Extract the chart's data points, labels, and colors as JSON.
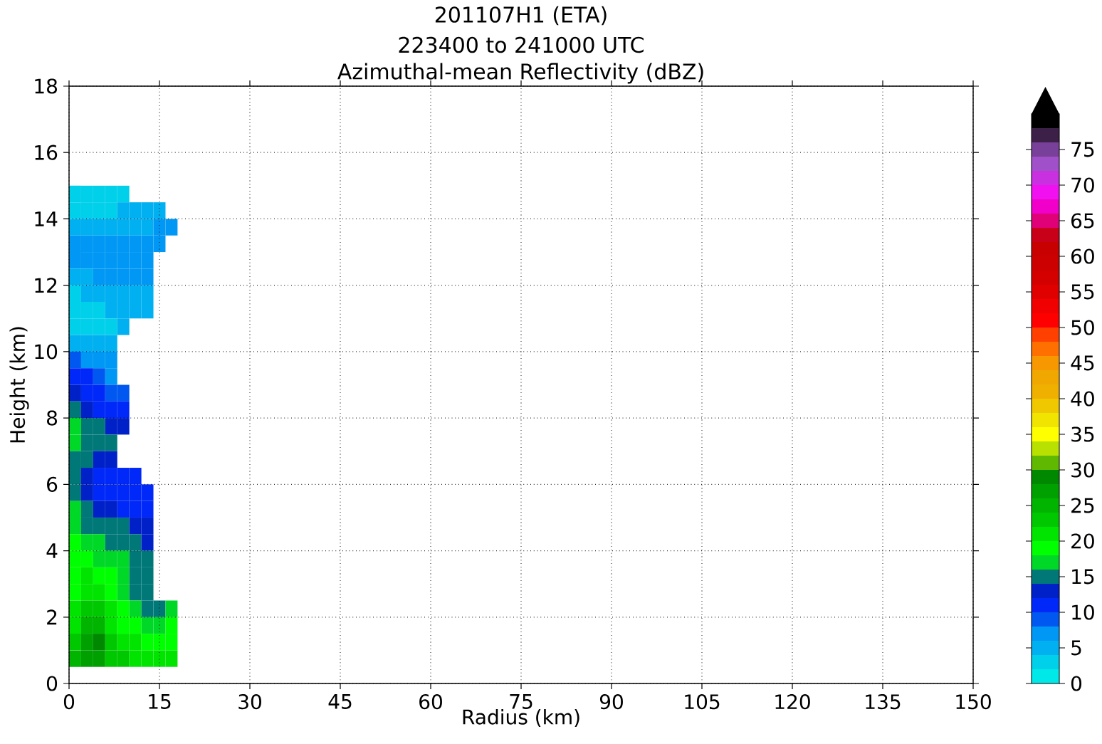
{
  "chart_data": {
    "type": "heatmap",
    "title": "201107H1 (ETA)",
    "subtitle": "223400 to 241000 UTC",
    "annotations": [
      "Azimuthal-mean Reflectivity (dBZ)"
    ],
    "xlabel": "Radius (km)",
    "ylabel": "Height (km)",
    "x": [
      1,
      3,
      5,
      7,
      9,
      11,
      13,
      15,
      17
    ],
    "y": [
      14.75,
      14.25,
      13.75,
      13.25,
      12.75,
      12.25,
      11.75,
      11.25,
      10.75,
      10.25,
      9.75,
      9.25,
      8.75,
      8.25,
      7.75,
      7.25,
      6.75,
      6.25,
      5.75,
      5.25,
      4.75,
      4.25,
      3.75,
      3.25,
      2.75,
      2.25,
      1.75,
      1.25,
      0.75
    ],
    "cells": [
      [
        3,
        3,
        3,
        3,
        3,
        null,
        null,
        null,
        null
      ],
      [
        3,
        3,
        3,
        3,
        5,
        5,
        5,
        5,
        null
      ],
      [
        5,
        5,
        5,
        5,
        5,
        5,
        5,
        7,
        7
      ],
      [
        7,
        7,
        7,
        7,
        7,
        7,
        7,
        7,
        null
      ],
      [
        7,
        7,
        7,
        7,
        7,
        7,
        7,
        null,
        null
      ],
      [
        5,
        5,
        7,
        7,
        7,
        7,
        7,
        null,
        null
      ],
      [
        3,
        5,
        5,
        5,
        5,
        5,
        5,
        null,
        null
      ],
      [
        3,
        3,
        3,
        5,
        5,
        5,
        5,
        null,
        null
      ],
      [
        3,
        3,
        3,
        3,
        5,
        null,
        null,
        null,
        null
      ],
      [
        5,
        5,
        5,
        5,
        null,
        null,
        null,
        null,
        null
      ],
      [
        9,
        7,
        7,
        7,
        null,
        null,
        null,
        null,
        null
      ],
      [
        11,
        11,
        9,
        7,
        null,
        null,
        null,
        null,
        null
      ],
      [
        13,
        11,
        11,
        9,
        9,
        null,
        null,
        null,
        null
      ],
      [
        15,
        13,
        11,
        11,
        11,
        null,
        null,
        null,
        null
      ],
      [
        17,
        15,
        15,
        13,
        13,
        null,
        null,
        null,
        null
      ],
      [
        17,
        15,
        15,
        15,
        null,
        null,
        null,
        null,
        null
      ],
      [
        15,
        15,
        13,
        13,
        null,
        null,
        null,
        null,
        null
      ],
      [
        15,
        13,
        11,
        11,
        11,
        11,
        null,
        null,
        null
      ],
      [
        15,
        13,
        11,
        11,
        11,
        11,
        11,
        null,
        null
      ],
      [
        17,
        15,
        13,
        13,
        11,
        11,
        11,
        null,
        null
      ],
      [
        17,
        15,
        15,
        15,
        15,
        13,
        13,
        null,
        null
      ],
      [
        19,
        17,
        17,
        15,
        15,
        15,
        13,
        null,
        null
      ],
      [
        19,
        19,
        17,
        17,
        17,
        15,
        15,
        null,
        null
      ],
      [
        19,
        21,
        19,
        19,
        17,
        15,
        15,
        null,
        null
      ],
      [
        19,
        21,
        21,
        19,
        17,
        15,
        15,
        null,
        null
      ],
      [
        21,
        23,
        23,
        21,
        19,
        17,
        15,
        15,
        17
      ],
      [
        21,
        25,
        25,
        21,
        19,
        19,
        17,
        17,
        19
      ],
      [
        23,
        27,
        29,
        23,
        21,
        21,
        19,
        19,
        19
      ],
      [
        25,
        27,
        27,
        23,
        23,
        21,
        21,
        21,
        21
      ]
    ],
    "colors": [
      "#00e8e8",
      "#00d0ea",
      "#00b0f0",
      "#0098f4",
      "#0058f0",
      "#0028f8",
      "#0020c8",
      "#007878",
      "#00d828",
      "#00ff00",
      "#00e400",
      "#00c800",
      "#00b400",
      "#00a000",
      "#008800",
      "#60b800",
      "#b8e000",
      "#ffff00",
      "#f0e400",
      "#f0c800",
      "#f0b000",
      "#f0a800",
      "#f89800",
      "#ff7000",
      "#ff4000",
      "#ff0000",
      "#f00000",
      "#e00000",
      "#d40000",
      "#cc0000",
      "#c80000",
      "#c80018",
      "#e00078",
      "#f000c8",
      "#f010f0",
      "#c830e0",
      "#a050c8",
      "#784098",
      "#3c2048",
      "#000000"
    ],
    "clim": [
      0,
      80
    ],
    "cticks": [
      0,
      5,
      10,
      15,
      20,
      25,
      30,
      35,
      40,
      45,
      50,
      55,
      60,
      65,
      70,
      75
    ],
    "xlim": [
      0,
      150
    ],
    "xticks": [
      0,
      15,
      30,
      45,
      60,
      75,
      90,
      105,
      120,
      135,
      150
    ],
    "ylim": [
      0,
      18
    ],
    "yticks": [
      0,
      2,
      4,
      6,
      8,
      10,
      12,
      14,
      16,
      18
    ],
    "grid": true
  }
}
